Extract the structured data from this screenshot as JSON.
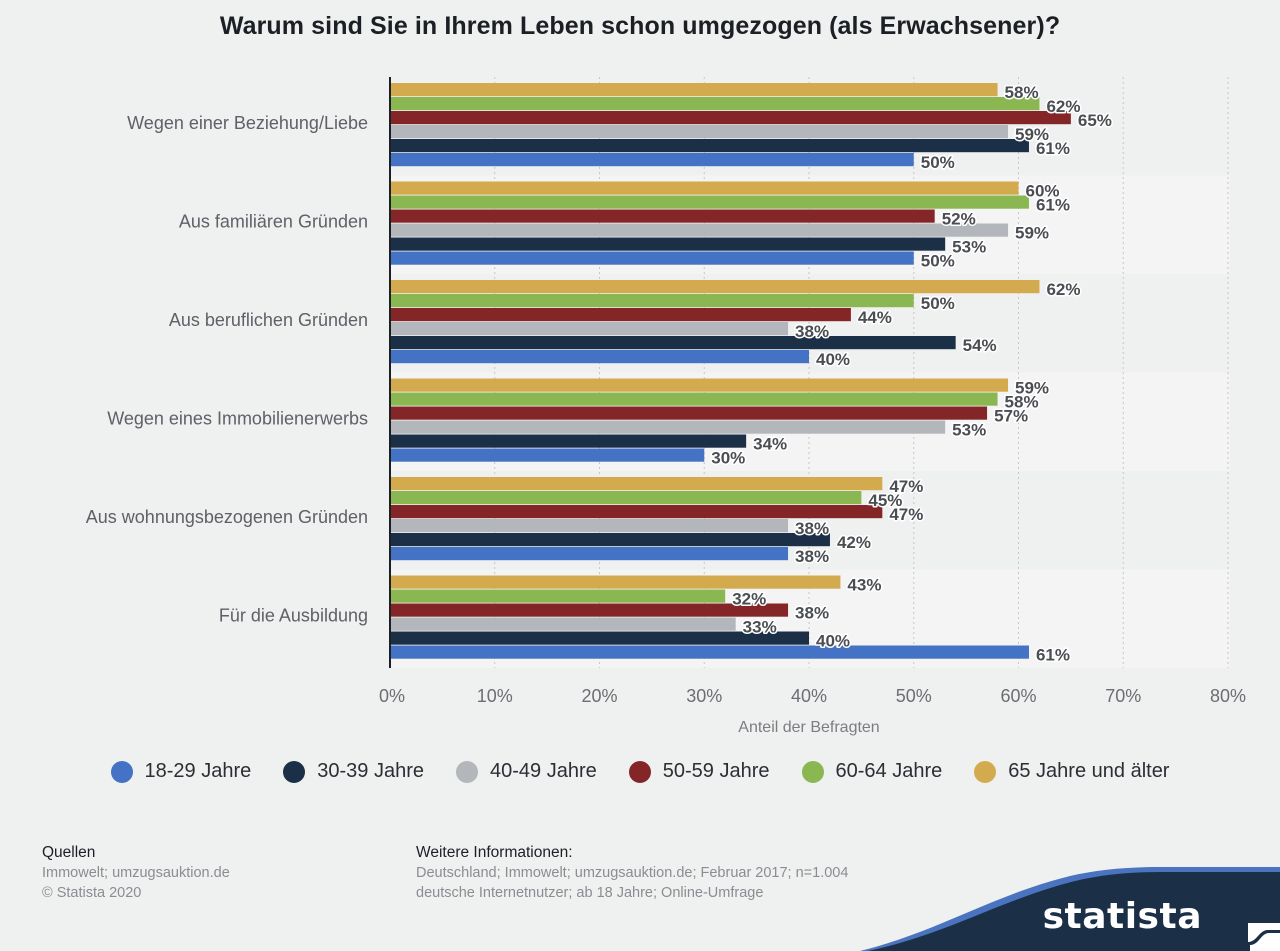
{
  "page": {
    "title": "Warum sind Sie in Ihrem Leben schon umgezogen (als Erwachsener)?"
  },
  "colors": {
    "bar_band_light": "#f4f4f4",
    "bar_band_dark": "#eff0f0",
    "grid": "#c5c7c9",
    "axis": "#1c1f24"
  },
  "chart_data": {
    "type": "bar",
    "orientation": "horizontal",
    "title": "Warum sind Sie in Ihrem Leben schon umgezogen (als Erwachsener)?",
    "xlabel": "Anteil der Befragten",
    "ylabel": "",
    "xlim": [
      0,
      80
    ],
    "x_ticks": [
      "0%",
      "10%",
      "20%",
      "30%",
      "40%",
      "50%",
      "60%",
      "70%",
      "80%"
    ],
    "x_tick_values": [
      0,
      10,
      20,
      30,
      40,
      50,
      60,
      70,
      80
    ],
    "grid": true,
    "legend_position": "bottom",
    "value_suffix": "%",
    "categories": [
      "Wegen einer Beziehung/Liebe",
      "Aus familiären Gründen",
      "Aus beruflichen Gründen",
      "Wegen eines Immobilienerwerbs",
      "Aus wohnungsbezogenen Gründen",
      "Für die Ausbildung"
    ],
    "series": [
      {
        "name": "18-29 Jahre",
        "color": "#4472c4",
        "values": [
          50,
          50,
          40,
          30,
          38,
          61
        ]
      },
      {
        "name": "30-39 Jahre",
        "color": "#1b2f47",
        "values": [
          61,
          53,
          54,
          34,
          42,
          40
        ]
      },
      {
        "name": "40-49 Jahre",
        "color": "#b3b6ba",
        "values": [
          59,
          59,
          38,
          53,
          38,
          33
        ]
      },
      {
        "name": "50-59 Jahre",
        "color": "#842628",
        "values": [
          65,
          52,
          44,
          57,
          47,
          38
        ]
      },
      {
        "name": "60-64 Jahre",
        "color": "#8bb753",
        "values": [
          62,
          61,
          50,
          58,
          45,
          32
        ]
      },
      {
        "name": "65 Jahre und älter",
        "color": "#d4aa4e",
        "values": [
          58,
          60,
          62,
          59,
          47,
          43
        ]
      }
    ]
  },
  "legend": {
    "items": [
      {
        "label": "18-29 Jahre",
        "color": "#4472c4"
      },
      {
        "label": "30-39 Jahre",
        "color": "#1b2f47"
      },
      {
        "label": "40-49 Jahre",
        "color": "#b3b6ba"
      },
      {
        "label": "50-59 Jahre",
        "color": "#842628"
      },
      {
        "label": "60-64 Jahre",
        "color": "#8bb753"
      },
      {
        "label": "65 Jahre und älter",
        "color": "#d4aa4e"
      }
    ]
  },
  "footer": {
    "sources": {
      "heading": "Quellen",
      "lines": [
        "Immowelt; umzugsauktion.de",
        "© Statista 2020"
      ]
    },
    "info": {
      "heading": "Weitere Informationen:",
      "lines": [
        "Deutschland; Immowelt; umzugsauktion.de; Februar 2017; n=1.004",
        "deutsche Internetnutzer; ab 18 Jahre; Online-Umfrage"
      ]
    }
  },
  "brand": {
    "name": "statista",
    "icon": "statista-logo-icon"
  }
}
